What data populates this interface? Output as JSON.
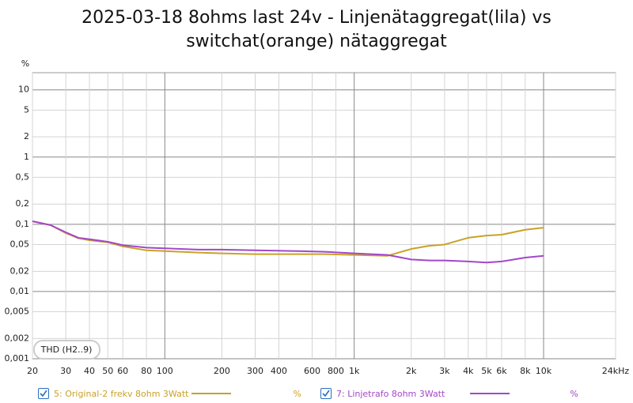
{
  "chart_data": {
    "type": "line",
    "title": "2025-03-18 8ohms last 24v - Linjenätaggregat(lila) vs switchat(orange) nätaggregat",
    "y_label": "%",
    "annotation": "THD (H2..9)",
    "x_scale": "log",
    "y_scale": "log",
    "grid": true,
    "xlim": [
      20,
      24000
    ],
    "ylim": [
      0.001,
      18
    ],
    "xticks": [
      20,
      30,
      40,
      50,
      60,
      80,
      100,
      200,
      300,
      400,
      600,
      800,
      {
        "value": 1000,
        "label": "1k"
      },
      {
        "value": 2000,
        "label": "2k"
      },
      {
        "value": 3000,
        "label": "3k"
      },
      {
        "value": 4000,
        "label": "4k"
      },
      {
        "value": 5000,
        "label": "5k"
      },
      {
        "value": 6000,
        "label": "6k"
      },
      {
        "value": 8000,
        "label": "8k"
      },
      {
        "value": 10000,
        "label": "10k"
      },
      {
        "value": 24000,
        "label": "24kHz"
      }
    ],
    "yticks": [
      10,
      5,
      2,
      1,
      {
        "value": 0.5,
        "label": "0,5"
      },
      {
        "value": 0.2,
        "label": "0,2"
      },
      {
        "value": 0.1,
        "label": "0,1"
      },
      {
        "value": 0.05,
        "label": "0,05"
      },
      {
        "value": 0.02,
        "label": "0,02"
      },
      {
        "value": 0.01,
        "label": "0,01"
      },
      {
        "value": 0.005,
        "label": "0,005"
      },
      {
        "value": 0.002,
        "label": "0,002"
      },
      {
        "value": 0.001,
        "label": "0,001"
      }
    ],
    "x": [
      20,
      25,
      30,
      35,
      40,
      50,
      60,
      80,
      100,
      150,
      200,
      300,
      500,
      700,
      1000,
      1500,
      2000,
      2500,
      3000,
      4000,
      5000,
      6000,
      8000,
      10000
    ],
    "series": [
      {
        "name": "5: Original-2 frekv 8ohm 3Watt",
        "unit": "%",
        "color": "#c9a227",
        "values": [
          0.111,
          0.097,
          0.074,
          0.062,
          0.058,
          0.054,
          0.047,
          0.041,
          0.04,
          0.038,
          0.037,
          0.036,
          0.036,
          0.036,
          0.035,
          0.034,
          0.043,
          0.048,
          0.05,
          0.063,
          0.068,
          0.07,
          0.083,
          0.089
        ]
      },
      {
        "name": "7: Linjetrafo 8ohm 3Watt",
        "unit": "%",
        "color": "#a347c9",
        "values": [
          0.111,
          0.097,
          0.076,
          0.063,
          0.06,
          0.055,
          0.049,
          0.045,
          0.044,
          0.042,
          0.042,
          0.041,
          0.04,
          0.039,
          0.037,
          0.035,
          0.03,
          0.029,
          0.029,
          0.028,
          0.027,
          0.028,
          0.032,
          0.034
        ]
      }
    ]
  }
}
